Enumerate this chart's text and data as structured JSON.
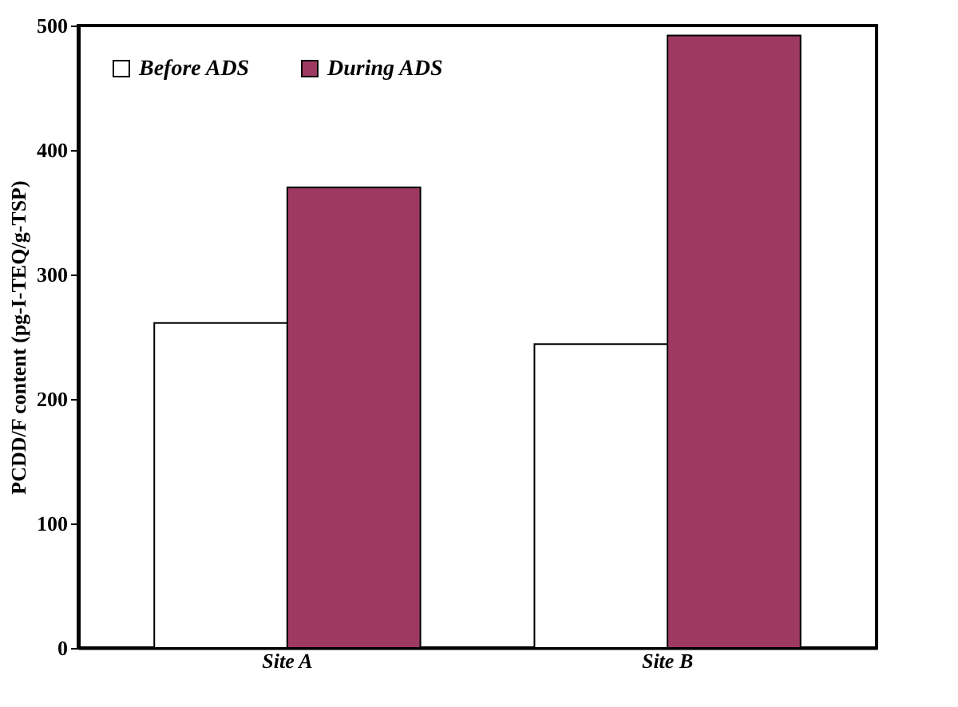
{
  "chart_data": {
    "type": "bar",
    "ylabel": "PCDD/F content (pg-I-TEQ/g-TSP)",
    "categories": [
      "Site A",
      "Site B"
    ],
    "series": [
      {
        "name": "Before ADS",
        "color": "#ffffff",
        "values": [
          261,
          244
        ]
      },
      {
        "name": "During ADS",
        "color": "#9e3a62",
        "values": [
          370,
          492
        ]
      }
    ],
    "ylim": [
      0,
      500
    ],
    "yticks": [
      0,
      100,
      200,
      300,
      400,
      500
    ],
    "grid": false,
    "legend": "top left"
  }
}
